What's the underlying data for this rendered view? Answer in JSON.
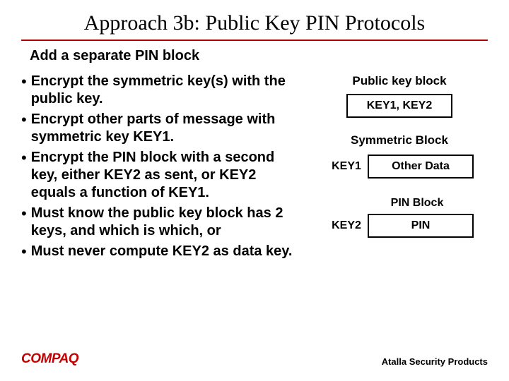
{
  "title": "Approach 3b:  Public Key PIN Protocols",
  "subtitle": "Add a separate PIN block",
  "bullets": [
    "Encrypt the symmetric key(s) with the public key.",
    "Encrypt other parts of message with symmetric key KEY1.",
    "Encrypt the PIN block with a second key, either KEY2 as sent, or KEY2 equals a function of KEY1.",
    "Must know the public key block has 2 keys, and which is which, or",
    "Must never compute KEY2 as data key."
  ],
  "diagram": {
    "public_key_label": "Public key block",
    "key_box": "KEY1, KEY2",
    "symmetric_label": "Symmetric Block",
    "row1_key": "KEY1",
    "row1_box": "Other Data",
    "pin_block_label": "PIN Block",
    "row2_key": "KEY2",
    "row2_box": "PIN"
  },
  "footer": {
    "logo": "COMPAQ",
    "right": "Atalla Security Products"
  },
  "colors": {
    "underline": "#b00000",
    "logo": "#c40000",
    "box_border": "#000000"
  }
}
